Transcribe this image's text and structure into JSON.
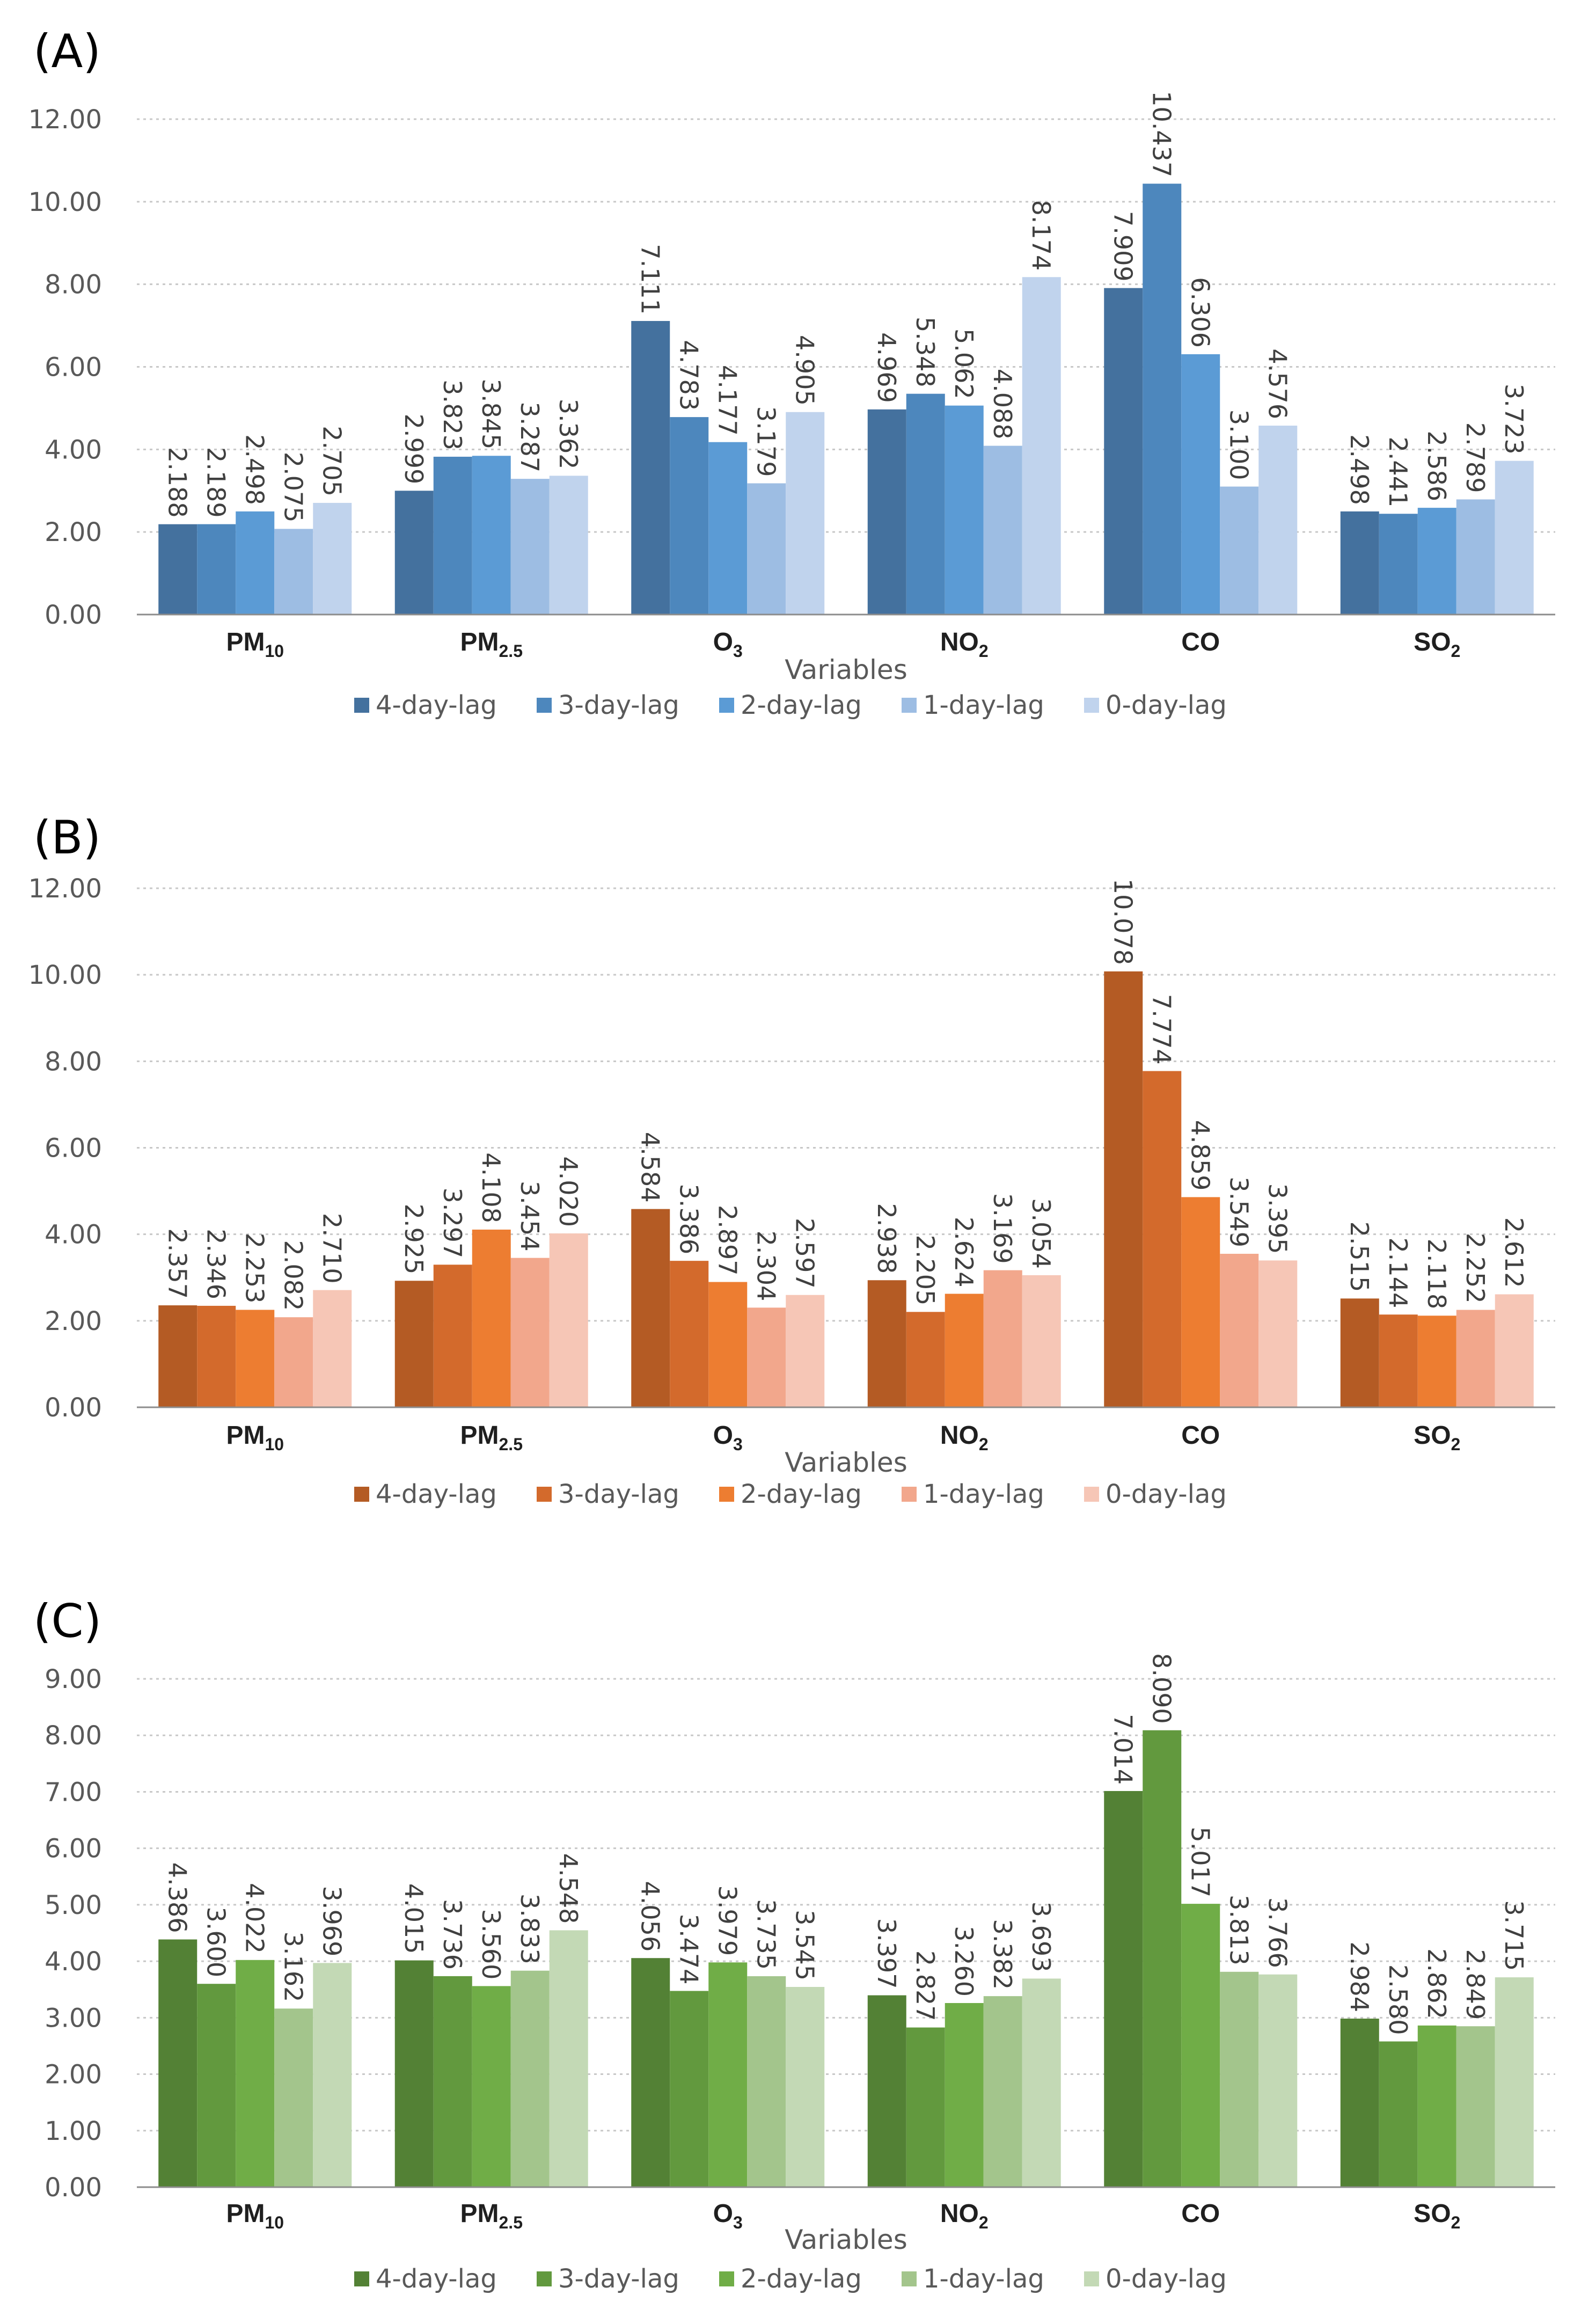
{
  "chart_data": [
    {
      "type": "bar",
      "panel_label": "(A)",
      "categories": [
        {
          "main": "PM",
          "sub": "10"
        },
        {
          "main": "PM",
          "sub": "2.5"
        },
        {
          "main": "O",
          "sub": "3"
        },
        {
          "main": "NO",
          "sub": "2"
        },
        {
          "main": "CO",
          "sub": ""
        },
        {
          "main": "SO",
          "sub": "2"
        }
      ],
      "series": [
        {
          "name": "4-day-lag",
          "color": "#44719e",
          "values": [
            2.188,
            2.999,
            7.111,
            4.969,
            7.909,
            2.498
          ]
        },
        {
          "name": "3-day-lag",
          "color": "#4d87bd",
          "values": [
            2.189,
            3.823,
            4.783,
            5.348,
            10.437,
            2.441
          ]
        },
        {
          "name": "2-day-lag",
          "color": "#5b9bd5",
          "values": [
            2.498,
            3.845,
            4.177,
            5.062,
            6.306,
            2.586
          ]
        },
        {
          "name": "1-day-lag",
          "color": "#9dbde3",
          "values": [
            2.075,
            3.287,
            3.179,
            4.088,
            3.1,
            2.789
          ]
        },
        {
          "name": "0-day-lag",
          "color": "#c0d3ed",
          "values": [
            2.705,
            3.362,
            4.905,
            8.174,
            4.576,
            3.723
          ]
        }
      ],
      "value_labels": [
        [
          "2.188",
          "2.999",
          "7.111",
          "4.969",
          "7.909",
          "2.498"
        ],
        [
          "2.189",
          "3.823",
          "4.783",
          "5.348",
          "10.437",
          "2.441"
        ],
        [
          "2.498",
          "3.845",
          "4.177",
          "5.062",
          "6.306",
          "2.586"
        ],
        [
          "2.075",
          "3.287",
          "3.179",
          "4.088",
          "3.100",
          "2.789"
        ],
        [
          "2.705",
          "3.362",
          "4.905",
          "8.174",
          "4.576",
          "3.723"
        ]
      ],
      "yticks": [
        "0.00",
        "2.00",
        "4.00",
        "6.00",
        "8.00",
        "10.00",
        "12.00"
      ],
      "ylim": [
        0,
        12
      ],
      "xlabel": "Variables",
      "ylabel": "",
      "grid": true,
      "legend_position": "bottom"
    },
    {
      "type": "bar",
      "panel_label": "(B)",
      "categories": [
        {
          "main": "PM",
          "sub": "10"
        },
        {
          "main": "PM",
          "sub": "2.5"
        },
        {
          "main": "O",
          "sub": "3"
        },
        {
          "main": "NO",
          "sub": "2"
        },
        {
          "main": "CO",
          "sub": ""
        },
        {
          "main": "SO",
          "sub": "2"
        }
      ],
      "series": [
        {
          "name": "4-day-lag",
          "color": "#b45b24",
          "values": [
            2.357,
            2.925,
            4.584,
            2.938,
            10.078,
            2.515
          ]
        },
        {
          "name": "3-day-lag",
          "color": "#d36a2c",
          "values": [
            2.346,
            3.297,
            3.386,
            2.205,
            7.774,
            2.144
          ]
        },
        {
          "name": "2-day-lag",
          "color": "#ed7d31",
          "values": [
            2.253,
            4.108,
            2.897,
            2.624,
            4.859,
            2.118
          ]
        },
        {
          "name": "1-day-lag",
          "color": "#f2a78c",
          "values": [
            2.082,
            3.454,
            2.304,
            3.169,
            3.549,
            2.252
          ]
        },
        {
          "name": "0-day-lag",
          "color": "#f6c6b6",
          "values": [
            2.71,
            4.02,
            2.597,
            3.054,
            3.395,
            2.612
          ]
        }
      ],
      "value_labels": [
        [
          "2.357",
          "2.925",
          "4.584",
          "2.938",
          "10.078",
          "2.515"
        ],
        [
          "2.346",
          "3.297",
          "3.386",
          "2.205",
          "7.774",
          "2.144"
        ],
        [
          "2.253",
          "4.108",
          "2.897",
          "2.624",
          "4.859",
          "2.118"
        ],
        [
          "2.082",
          "3.454",
          "2.304",
          "3.169",
          "3.549",
          "2.252"
        ],
        [
          "2.710",
          "4.020",
          "2.597",
          "3.054",
          "3.395",
          "2.612"
        ]
      ],
      "yticks": [
        "0.00",
        "2.00",
        "4.00",
        "6.00",
        "8.00",
        "10.00",
        "12.00"
      ],
      "ylim": [
        0,
        12
      ],
      "xlabel": "Variables",
      "ylabel": "",
      "grid": true,
      "legend_position": "bottom"
    },
    {
      "type": "bar",
      "panel_label": "(C)",
      "categories": [
        {
          "main": "PM",
          "sub": "10"
        },
        {
          "main": "PM",
          "sub": "2.5"
        },
        {
          "main": "O",
          "sub": "3"
        },
        {
          "main": "NO",
          "sub": "2"
        },
        {
          "main": "CO",
          "sub": ""
        },
        {
          "main": "SO",
          "sub": "2"
        }
      ],
      "series": [
        {
          "name": "4-day-lag",
          "color": "#538135",
          "values": [
            4.386,
            4.015,
            4.056,
            3.397,
            7.014,
            2.984
          ]
        },
        {
          "name": "3-day-lag",
          "color": "#62993e",
          "values": [
            3.6,
            3.736,
            3.474,
            2.827,
            8.09,
            2.58
          ]
        },
        {
          "name": "2-day-lag",
          "color": "#70ad47",
          "values": [
            4.022,
            3.56,
            3.979,
            3.26,
            5.017,
            2.862
          ]
        },
        {
          "name": "1-day-lag",
          "color": "#a3c58c",
          "values": [
            3.162,
            3.833,
            3.735,
            3.382,
            3.813,
            2.849
          ]
        },
        {
          "name": "0-day-lag",
          "color": "#c3d9b5",
          "values": [
            3.969,
            4.548,
            3.545,
            3.693,
            3.766,
            3.715
          ]
        }
      ],
      "value_labels": [
        [
          "4.386",
          "4.015",
          "4.056",
          "3.397",
          "7.014",
          "2.984"
        ],
        [
          "3.600",
          "3.736",
          "3.474",
          "2.827",
          "8.090",
          "2.580"
        ],
        [
          "4.022",
          "3.560",
          "3.979",
          "3.260",
          "5.017",
          "2.862"
        ],
        [
          "3.162",
          "3.833",
          "3.735",
          "3.382",
          "3.813",
          "2.849"
        ],
        [
          "3.969",
          "4.548",
          "3.545",
          "3.693",
          "3.766",
          "3.715"
        ]
      ],
      "yticks": [
        "0.00",
        "1.00",
        "2.00",
        "3.00",
        "4.00",
        "5.00",
        "6.00",
        "7.00",
        "8.00",
        "9.00"
      ],
      "ylim": [
        0,
        9
      ],
      "xlabel": "Variables",
      "ylabel": "",
      "grid": true,
      "legend_position": "bottom"
    }
  ]
}
